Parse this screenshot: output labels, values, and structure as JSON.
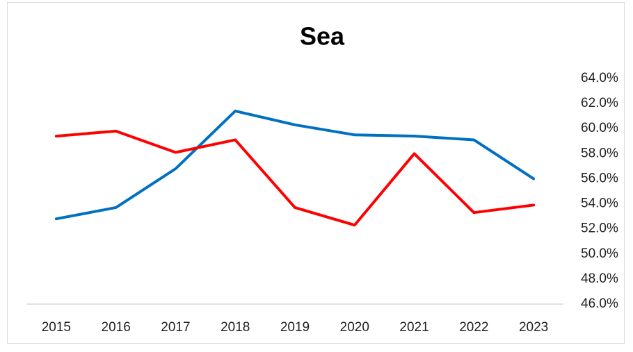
{
  "chart_data": {
    "type": "line",
    "title": "Sea",
    "categories": [
      "2015",
      "2016",
      "2017",
      "2018",
      "2019",
      "2020",
      "2021",
      "2022",
      "2023"
    ],
    "series": [
      {
        "color": "#0070c0",
        "values": [
          52.8,
          53.7,
          56.8,
          61.4,
          60.3,
          59.5,
          59.4,
          59.1,
          56.0
        ]
      },
      {
        "color": "#ff0000",
        "values": [
          59.4,
          59.8,
          58.1,
          59.1,
          53.7,
          52.3,
          58.0,
          53.3,
          53.9
        ]
      }
    ],
    "ylim": [
      46,
      64
    ],
    "yticks": [
      {
        "value": 46,
        "label": "46.0%"
      },
      {
        "value": 48,
        "label": "48.0%"
      },
      {
        "value": 50,
        "label": "50.0%"
      },
      {
        "value": 52,
        "label": "52.0%"
      },
      {
        "value": 54,
        "label": "54.0%"
      },
      {
        "value": 56,
        "label": "56.0%"
      },
      {
        "value": 58,
        "label": "58.0%"
      },
      {
        "value": 60,
        "label": "60.0%"
      },
      {
        "value": 62,
        "label": "62.0%"
      },
      {
        "value": 64,
        "label": "64.0%"
      }
    ],
    "y_axis_side": "right",
    "grid": false
  }
}
